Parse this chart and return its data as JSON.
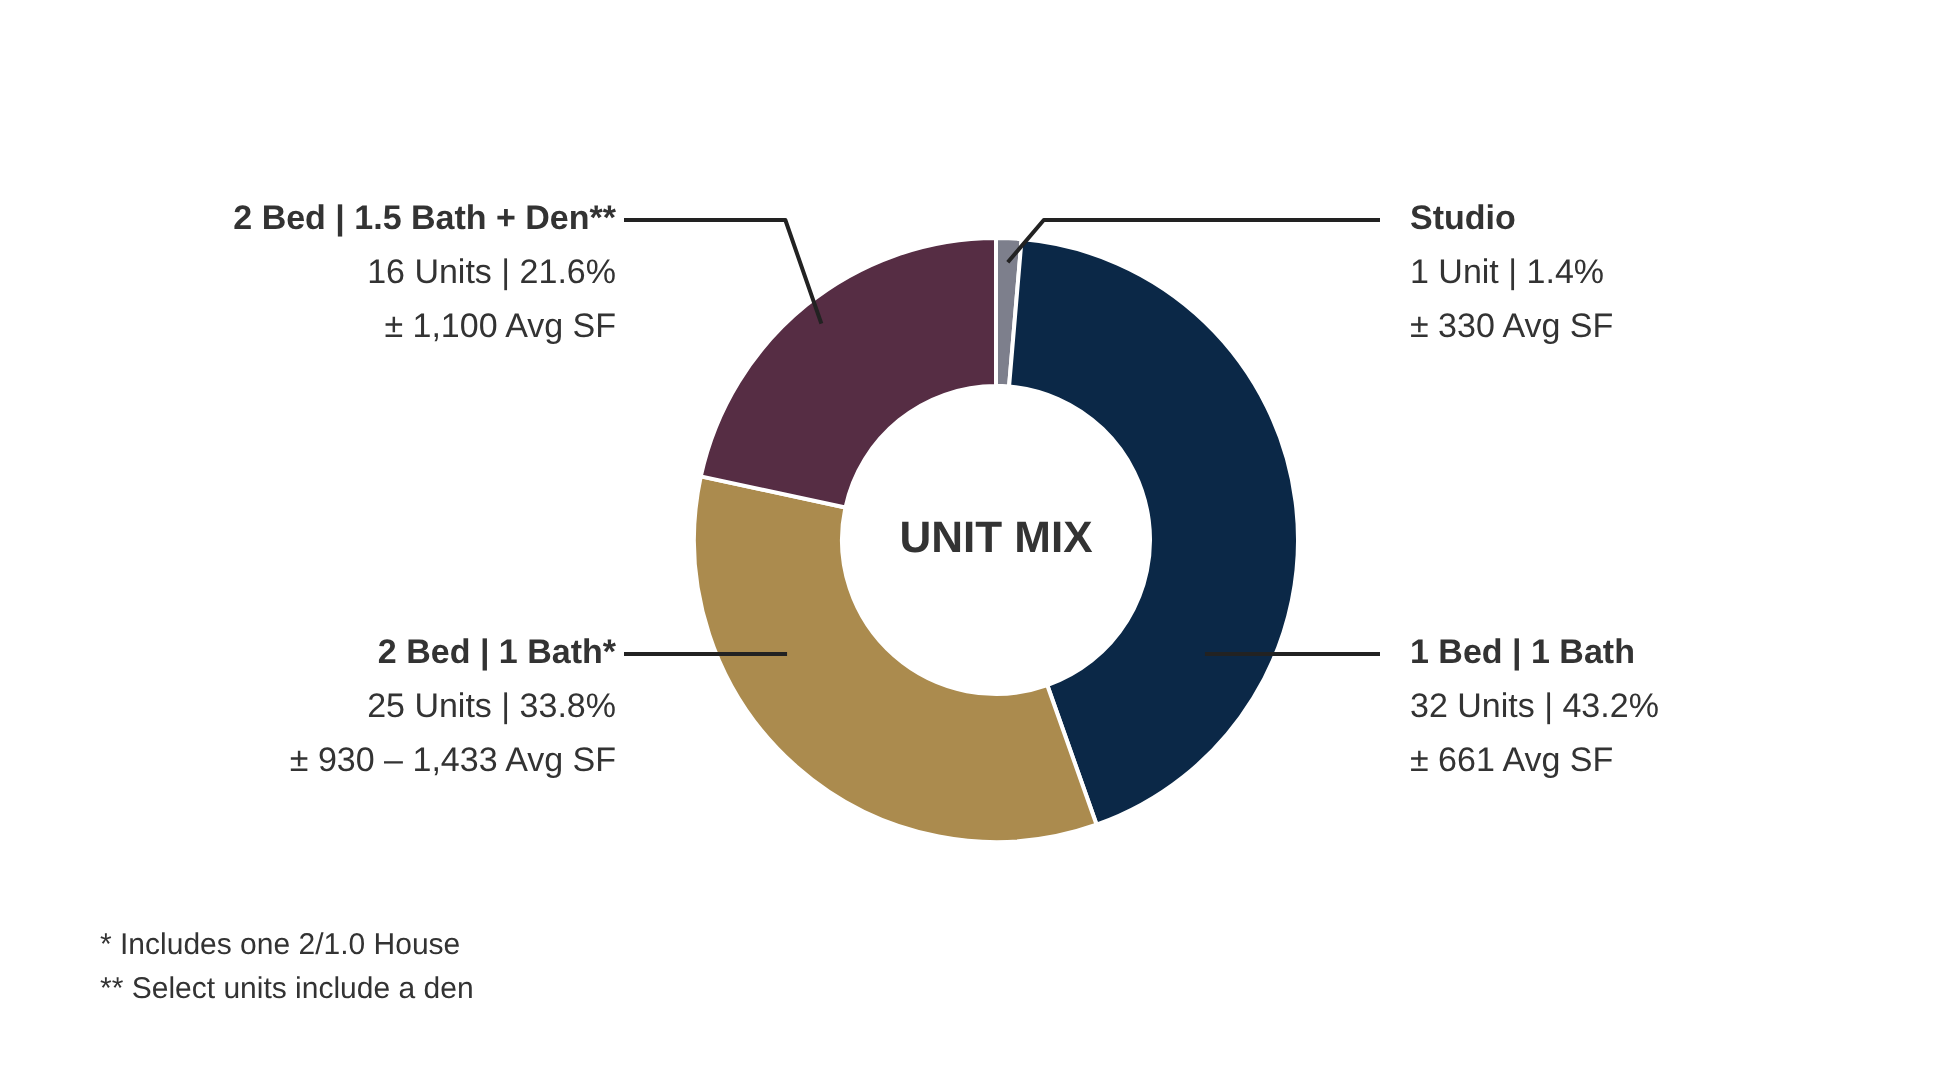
{
  "chart_data": {
    "type": "donut",
    "title": "UNIT MIX",
    "categories": [
      "Studio",
      "1 Bed | 1 Bath",
      "2 Bed | 1 Bath*",
      "2 Bed | 1.5 Bath + Den**"
    ],
    "values": [
      1,
      32,
      25,
      16
    ],
    "colors": [
      "#7d7f8c",
      "#0b2847",
      "#ab8b4e",
      "#562d44"
    ],
    "value_labels": [
      "1 Unit | 1.4%\n± 330 Avg SF",
      "32 Units | 43.2%\n± 661 Avg SF",
      "25 Units | 33.8%\n± 930 – 1,433 Avg SF",
      "16 Units | 21.6%\n± 1,100 Avg SF"
    ],
    "annotations": [
      "* Includes one 2/1.0 House",
      "** Select units include a den"
    ],
    "legend": false
  }
}
